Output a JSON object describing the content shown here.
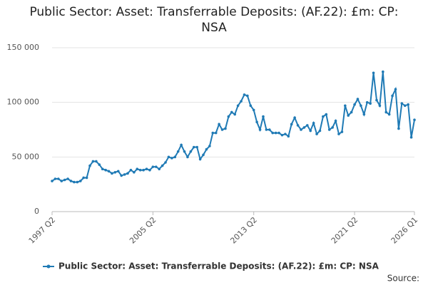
{
  "chart_data": {
    "type": "line",
    "title": "Public Sector: Asset: Transferrable Deposits: (AF.22): £m: CP: NSA",
    "source": "Source:",
    "categories": [
      "1997 Q2",
      null,
      null,
      null,
      null,
      null,
      null,
      null,
      null,
      null,
      null,
      null,
      null,
      null,
      null,
      null,
      null,
      null,
      null,
      null,
      null,
      null,
      null,
      null,
      null,
      null,
      null,
      null,
      null,
      null,
      null,
      null,
      "2005 Q2",
      null,
      null,
      null,
      null,
      null,
      null,
      null,
      null,
      null,
      null,
      null,
      null,
      null,
      null,
      null,
      null,
      null,
      null,
      null,
      null,
      null,
      null,
      null,
      null,
      null,
      null,
      null,
      null,
      null,
      null,
      null,
      "2013 Q2",
      null,
      null,
      null,
      null,
      null,
      null,
      null,
      null,
      null,
      null,
      null,
      null,
      null,
      null,
      null,
      null,
      null,
      null,
      null,
      null,
      null,
      null,
      null,
      null,
      null,
      null,
      null,
      null,
      null,
      null,
      null,
      "2021 Q2",
      null,
      null,
      null,
      null,
      null,
      null,
      null,
      null,
      null,
      null,
      null,
      null,
      null,
      null,
      null,
      null,
      null,
      null,
      "2026 Q1"
    ],
    "series": [
      {
        "name": "Public Sector: Asset: Transferrable Deposits: (AF.22): £m: CP: NSA",
        "color": "#1f7ab5",
        "values": [
          28000,
          30000,
          30000,
          28000,
          29000,
          30000,
          28000,
          27000,
          27000,
          28000,
          31000,
          31000,
          42000,
          46000,
          46000,
          43000,
          39000,
          38000,
          37000,
          35000,
          36000,
          37000,
          33000,
          34000,
          35000,
          38000,
          36000,
          39000,
          38000,
          38000,
          39000,
          38000,
          41000,
          41000,
          39000,
          42000,
          45000,
          50000,
          49000,
          50000,
          55000,
          61000,
          55000,
          50000,
          55000,
          59000,
          59000,
          48000,
          52000,
          57000,
          60000,
          72000,
          72000,
          80000,
          75000,
          76000,
          87000,
          91000,
          89000,
          97000,
          101000,
          107000,
          106000,
          97000,
          93000,
          82000,
          75000,
          87000,
          75000,
          75000,
          72000,
          72000,
          72000,
          70000,
          71000,
          69000,
          80000,
          86000,
          79000,
          75000,
          77000,
          79000,
          74000,
          81000,
          71000,
          74000,
          87000,
          89000,
          75000,
          77000,
          83000,
          71000,
          73000,
          97000,
          88000,
          91000,
          98000,
          103000,
          97000,
          89000,
          100000,
          99000,
          127000,
          102000,
          97000,
          128000,
          91000,
          89000,
          106000,
          112000,
          76000,
          99000,
          97000,
          98000,
          68000,
          84000
        ]
      }
    ],
    "ylim": [
      0,
      150000
    ],
    "yticks": [
      0,
      {
        "value": 50000,
        "label": "50 000"
      },
      {
        "value": 100000,
        "label": "100 000"
      },
      {
        "value": 150000,
        "label": "150 000"
      }
    ],
    "grid": true
  }
}
